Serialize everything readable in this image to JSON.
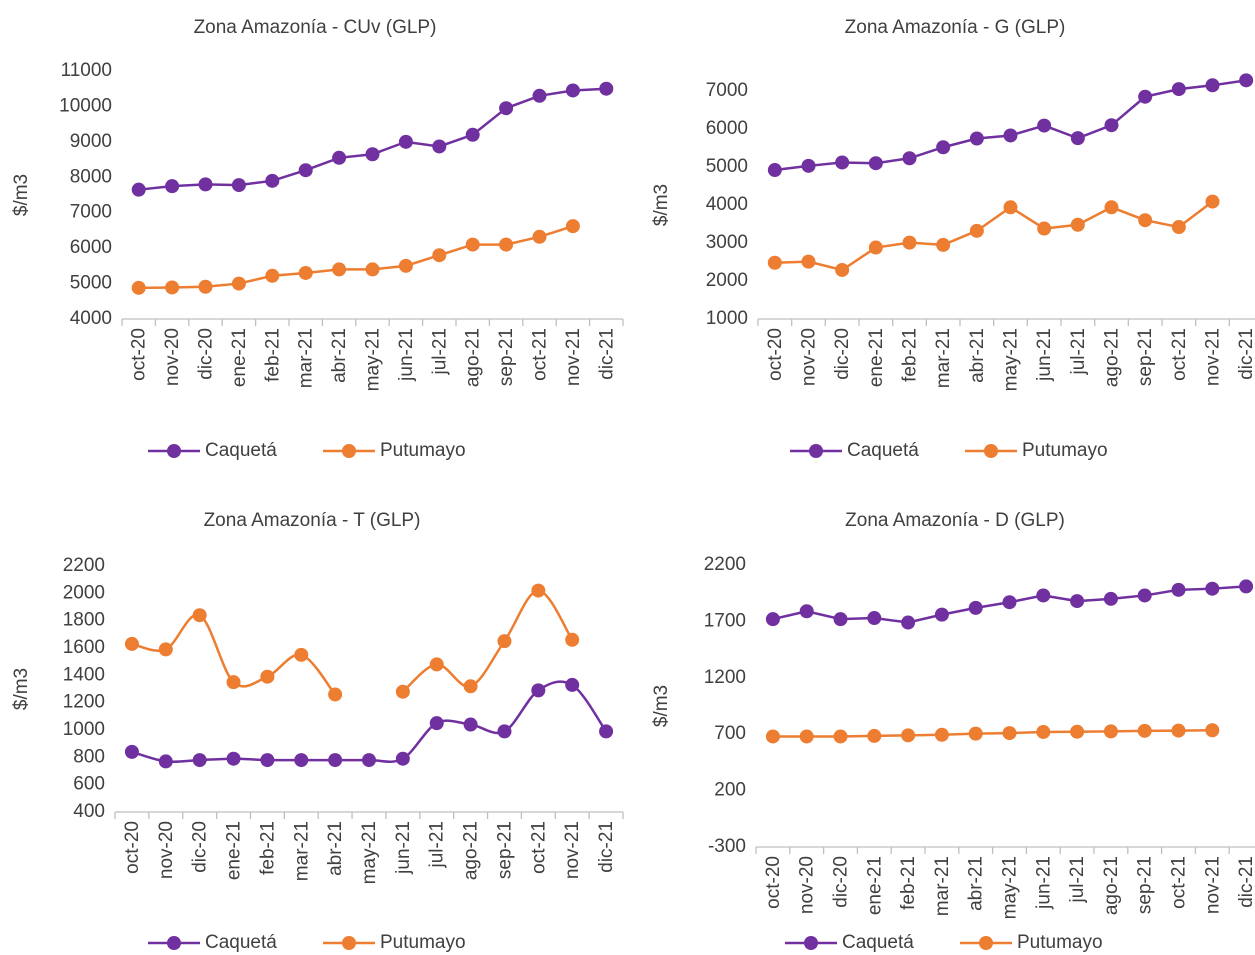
{
  "chart_data": [
    {
      "type": "line",
      "title": "Zona Amazonía - CUv (GLP)",
      "y_label": "$/m3",
      "categories": [
        "oct-20",
        "nov-20",
        "dic-20",
        "ene-21",
        "feb-21",
        "mar-21",
        "abr-21",
        "may-21",
        "jun-21",
        "jul-21",
        "ago-21",
        "sep-21",
        "oct-21",
        "nov-21",
        "dic-21"
      ],
      "series": [
        {
          "name": "Caquetá",
          "color": "#7030a0",
          "values": [
            7650,
            7750,
            7800,
            7780,
            7900,
            8200,
            8550,
            8650,
            9000,
            8870,
            9200,
            9950,
            10300,
            10450,
            10500
          ]
        },
        {
          "name": "Putumayo",
          "color": "#ed7d31",
          "values": [
            4880,
            4890,
            4910,
            5000,
            5220,
            5300,
            5400,
            5400,
            5500,
            5800,
            6100,
            6100,
            6320,
            6620,
            null
          ]
        }
      ],
      "ylim": [
        4000,
        11000
      ],
      "yticks": [
        4000,
        5000,
        6000,
        7000,
        8000,
        9000,
        10000,
        11000
      ],
      "smooth": false,
      "legend": "bottom"
    },
    {
      "type": "line",
      "title": "Zona Amazonía  - G (GLP)",
      "y_label": "$/m3",
      "categories": [
        "oct-20",
        "nov-20",
        "dic-20",
        "ene-21",
        "feb-21",
        "mar-21",
        "abr-21",
        "may-21",
        "jun-21",
        "jul-21",
        "ago-21",
        "sep-21",
        "oct-21",
        "nov-21",
        "dic-21"
      ],
      "series": [
        {
          "name": "Caquetá",
          "color": "#7030a0",
          "values": [
            4920,
            5030,
            5120,
            5100,
            5230,
            5520,
            5750,
            5830,
            6090,
            5760,
            6100,
            6850,
            7050,
            7150,
            7280
          ]
        },
        {
          "name": "Putumayo",
          "color": "#ed7d31",
          "values": [
            2480,
            2510,
            2290,
            2880,
            3010,
            2950,
            3320,
            3940,
            3380,
            3480,
            3940,
            3600,
            3420,
            4090,
            null
          ]
        }
      ],
      "ylim": [
        1000,
        7000
      ],
      "yticks": [
        1000,
        2000,
        3000,
        4000,
        5000,
        6000,
        7000
      ],
      "smooth": false,
      "legend": "bottom"
    },
    {
      "type": "line",
      "title": "Zona Amazonía - T (GLP)",
      "y_label": "$/m3",
      "categories": [
        "oct-20",
        "nov-20",
        "dic-20",
        "ene-21",
        "feb-21",
        "mar-21",
        "abr-21",
        "may-21",
        "jun-21",
        "jul-21",
        "ago-21",
        "sep-21",
        "oct-21",
        "nov-21",
        "dic-21"
      ],
      "series": [
        {
          "name": "Caquetá",
          "color": "#7030a0",
          "values": [
            840,
            770,
            780,
            790,
            780,
            780,
            780,
            780,
            790,
            1050,
            1040,
            990,
            1290,
            1330,
            990
          ]
        },
        {
          "name": "Putumayo",
          "color": "#ed7d31",
          "values": [
            1630,
            1590,
            1840,
            1350,
            1390,
            1550,
            1260,
            null,
            1280,
            1480,
            1320,
            1650,
            2020,
            1660,
            null
          ]
        }
      ],
      "ylim": [
        400,
        2200
      ],
      "yticks": [
        400,
        600,
        800,
        1000,
        1200,
        1400,
        1600,
        1800,
        2000,
        2200
      ],
      "smooth": true,
      "legend": "bottom"
    },
    {
      "type": "line",
      "title": "Zona Amazonía - D (GLP)",
      "y_label": "$/m3",
      "categories": [
        "oct-20",
        "nov-20",
        "dic-20",
        "ene-21",
        "feb-21",
        "mar-21",
        "abr-21",
        "may-21",
        "jun-21",
        "jul-21",
        "ago-21",
        "sep-21",
        "oct-21",
        "nov-21",
        "dic-21"
      ],
      "series": [
        {
          "name": "Caquetá",
          "color": "#7030a0",
          "values": [
            1720,
            1790,
            1720,
            1730,
            1690,
            1760,
            1820,
            1870,
            1930,
            1880,
            1900,
            1930,
            1980,
            1990,
            2010
          ]
        },
        {
          "name": "Putumayo",
          "color": "#ed7d31",
          "values": [
            680,
            680,
            680,
            685,
            690,
            695,
            705,
            710,
            720,
            722,
            725,
            730,
            732,
            735,
            null
          ]
        }
      ],
      "ylim": [
        -300,
        2200
      ],
      "yticks": [
        -300,
        200,
        700,
        1200,
        1700,
        2200
      ],
      "smooth": false,
      "legend": "bottom"
    }
  ]
}
